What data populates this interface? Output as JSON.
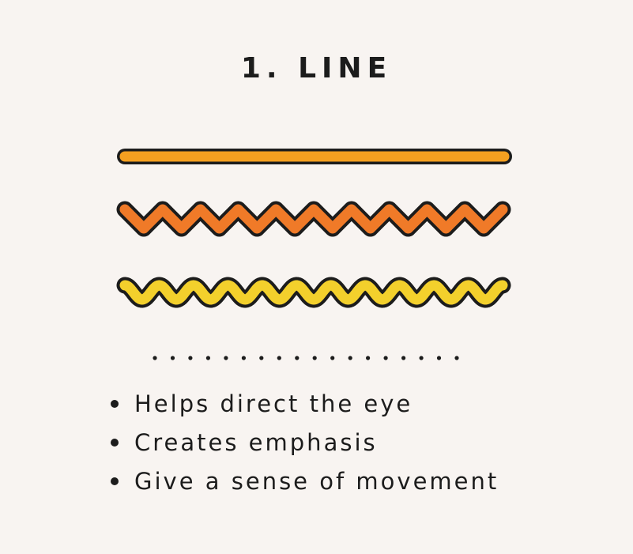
{
  "title": "1. LINE",
  "colors": {
    "background": "#f8f4f1",
    "outline": "#1c1c1c",
    "straight_line": "#f5a020",
    "zigzag_line": "#f07a28",
    "wavy_line": "#f3d02c"
  },
  "illustrations": [
    "straight-line",
    "zigzag-line",
    "wavy-line",
    "dotted-divider"
  ],
  "bullets": [
    "Helps direct the eye",
    "Creates emphasis",
    "Give a sense of movement"
  ]
}
